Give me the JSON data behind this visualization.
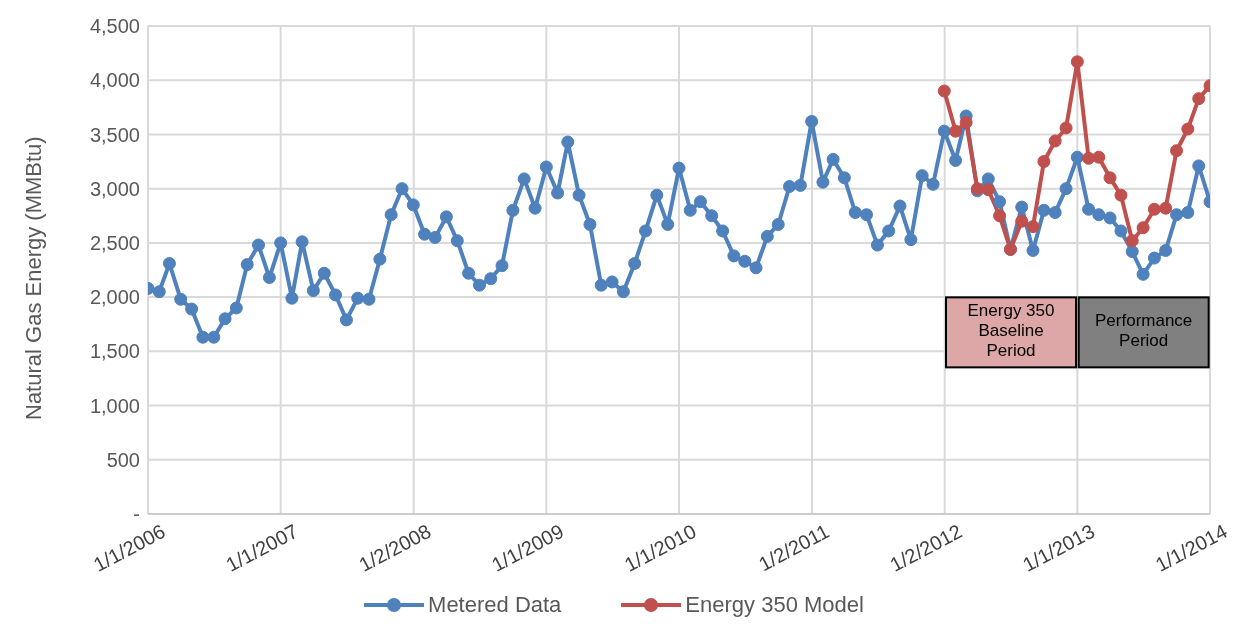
{
  "chart_data": {
    "type": "line",
    "ylabel": "Natural Gas Energy (MMBtu)",
    "x": [
      "2006-01-01",
      "2006-02-01",
      "2006-03-01",
      "2006-04-01",
      "2006-05-01",
      "2006-06-01",
      "2006-07-01",
      "2006-08-01",
      "2006-09-01",
      "2006-10-01",
      "2006-11-01",
      "2006-12-01",
      "2007-01-01",
      "2007-02-01",
      "2007-03-01",
      "2007-04-01",
      "2007-05-01",
      "2007-06-01",
      "2007-07-01",
      "2007-08-01",
      "2007-09-01",
      "2007-10-01",
      "2007-11-01",
      "2007-12-01",
      "2008-01-01",
      "2008-02-01",
      "2008-03-01",
      "2008-04-01",
      "2008-05-01",
      "2008-06-01",
      "2008-07-01",
      "2008-08-01",
      "2008-09-01",
      "2008-10-01",
      "2008-11-01",
      "2008-12-01",
      "2009-01-01",
      "2009-02-01",
      "2009-03-01",
      "2009-04-01",
      "2009-05-01",
      "2009-06-01",
      "2009-07-01",
      "2009-08-01",
      "2009-09-01",
      "2009-10-01",
      "2009-11-01",
      "2009-12-01",
      "2010-01-01",
      "2010-02-01",
      "2010-03-01",
      "2010-04-01",
      "2010-05-01",
      "2010-06-01",
      "2010-07-01",
      "2010-08-01",
      "2010-09-01",
      "2010-10-01",
      "2010-11-01",
      "2010-12-01",
      "2011-01-01",
      "2011-02-01",
      "2011-03-01",
      "2011-04-01",
      "2011-05-01",
      "2011-06-01",
      "2011-07-01",
      "2011-08-01",
      "2011-09-01",
      "2011-10-01",
      "2011-11-01",
      "2011-12-01",
      "2012-01-01",
      "2012-02-01",
      "2012-03-01",
      "2012-04-01",
      "2012-05-01",
      "2012-06-01",
      "2012-07-01",
      "2012-08-01",
      "2012-09-01",
      "2012-10-01",
      "2012-11-01",
      "2012-12-01",
      "2013-01-01",
      "2013-02-01",
      "2013-03-01",
      "2013-04-01",
      "2013-05-01",
      "2013-06-01",
      "2013-07-01",
      "2013-08-01",
      "2013-09-01",
      "2013-10-01",
      "2013-11-01",
      "2013-12-01",
      "2014-01-01"
    ],
    "series": [
      {
        "name": "Metered Data",
        "color": "#4f81bd",
        "values": [
          2080,
          2050,
          2310,
          1980,
          1890,
          1630,
          1630,
          1800,
          1900,
          2300,
          2480,
          2180,
          2500,
          1990,
          2510,
          2060,
          2220,
          2020,
          1790,
          1990,
          1980,
          2350,
          2760,
          3000,
          2850,
          2580,
          2550,
          2740,
          2520,
          2220,
          2110,
          2170,
          2290,
          2800,
          3090,
          2820,
          3200,
          2960,
          3430,
          2940,
          2670,
          2110,
          2140,
          2050,
          2310,
          2610,
          2940,
          2670,
          3190,
          2800,
          2880,
          2750,
          2610,
          2380,
          2330,
          2270,
          2560,
          2670,
          3020,
          3030,
          3620,
          3060,
          3270,
          3100,
          2780,
          2760,
          2480,
          2610,
          2840,
          2530,
          3120,
          3040,
          3530,
          3260,
          3670,
          2980,
          3090,
          2880,
          2440,
          2830,
          2430,
          2800,
          2780,
          3000,
          3290,
          2810,
          2760,
          2730,
          2610,
          2420,
          2210,
          2360,
          2430,
          2760,
          2780,
          3210,
          2880
        ]
      },
      {
        "name": "Energy 350 Model",
        "color": "#c0504d",
        "x": [
          "2012-01-01",
          "2012-02-01",
          "2012-03-01",
          "2012-04-01",
          "2012-05-01",
          "2012-06-01",
          "2012-07-01",
          "2012-08-01",
          "2012-09-01",
          "2012-10-01",
          "2012-11-01",
          "2012-12-01",
          "2013-01-01",
          "2013-02-01",
          "2013-03-01",
          "2013-04-01",
          "2013-05-01",
          "2013-06-01",
          "2013-07-01",
          "2013-08-01",
          "2013-09-01",
          "2013-10-01",
          "2013-11-01",
          "2013-12-01",
          "2014-01-01"
        ],
        "values": [
          3900,
          3530,
          3610,
          3000,
          2990,
          2750,
          2440,
          2700,
          2650,
          3250,
          3440,
          3560,
          4170,
          3280,
          3290,
          3100,
          2940,
          2520,
          2640,
          2810,
          2820,
          3350,
          3550,
          3830,
          3950
        ]
      }
    ],
    "xlim": [
      "2006-01-01",
      "2014-01-01"
    ],
    "xticks": [
      {
        "value": "2006-01-01",
        "label": "1/1/2006"
      },
      {
        "value": "2007-01-01",
        "label": "1/1/2007"
      },
      {
        "value": "2008-01-02",
        "label": "1/2/2008"
      },
      {
        "value": "2009-01-01",
        "label": "1/1/2009"
      },
      {
        "value": "2010-01-01",
        "label": "1/1/2010"
      },
      {
        "value": "2011-01-02",
        "label": "1/2/2011"
      },
      {
        "value": "2012-01-02",
        "label": "1/2/2012"
      },
      {
        "value": "2013-01-01",
        "label": "1/1/2013"
      },
      {
        "value": "2014-01-01",
        "label": "1/1/2014"
      }
    ],
    "ylim": [
      0,
      4500
    ],
    "yticks": [
      {
        "value": 0,
        "label": "-"
      },
      {
        "value": 500,
        "label": "500"
      },
      {
        "value": 1000,
        "label": "1,000"
      },
      {
        "value": 1500,
        "label": "1,500"
      },
      {
        "value": 2000,
        "label": "2,000"
      },
      {
        "value": 2500,
        "label": "2,500"
      },
      {
        "value": 3000,
        "label": "3,000"
      },
      {
        "value": 3500,
        "label": "3,500"
      },
      {
        "value": 4000,
        "label": "4,000"
      },
      {
        "value": 4500,
        "label": "4,500"
      }
    ],
    "annotations": [
      "Energy 350 Baseline Period",
      "Performance Period"
    ],
    "grid": true,
    "legend": "bottom",
    "marker": "circle",
    "line_style": "solid"
  }
}
